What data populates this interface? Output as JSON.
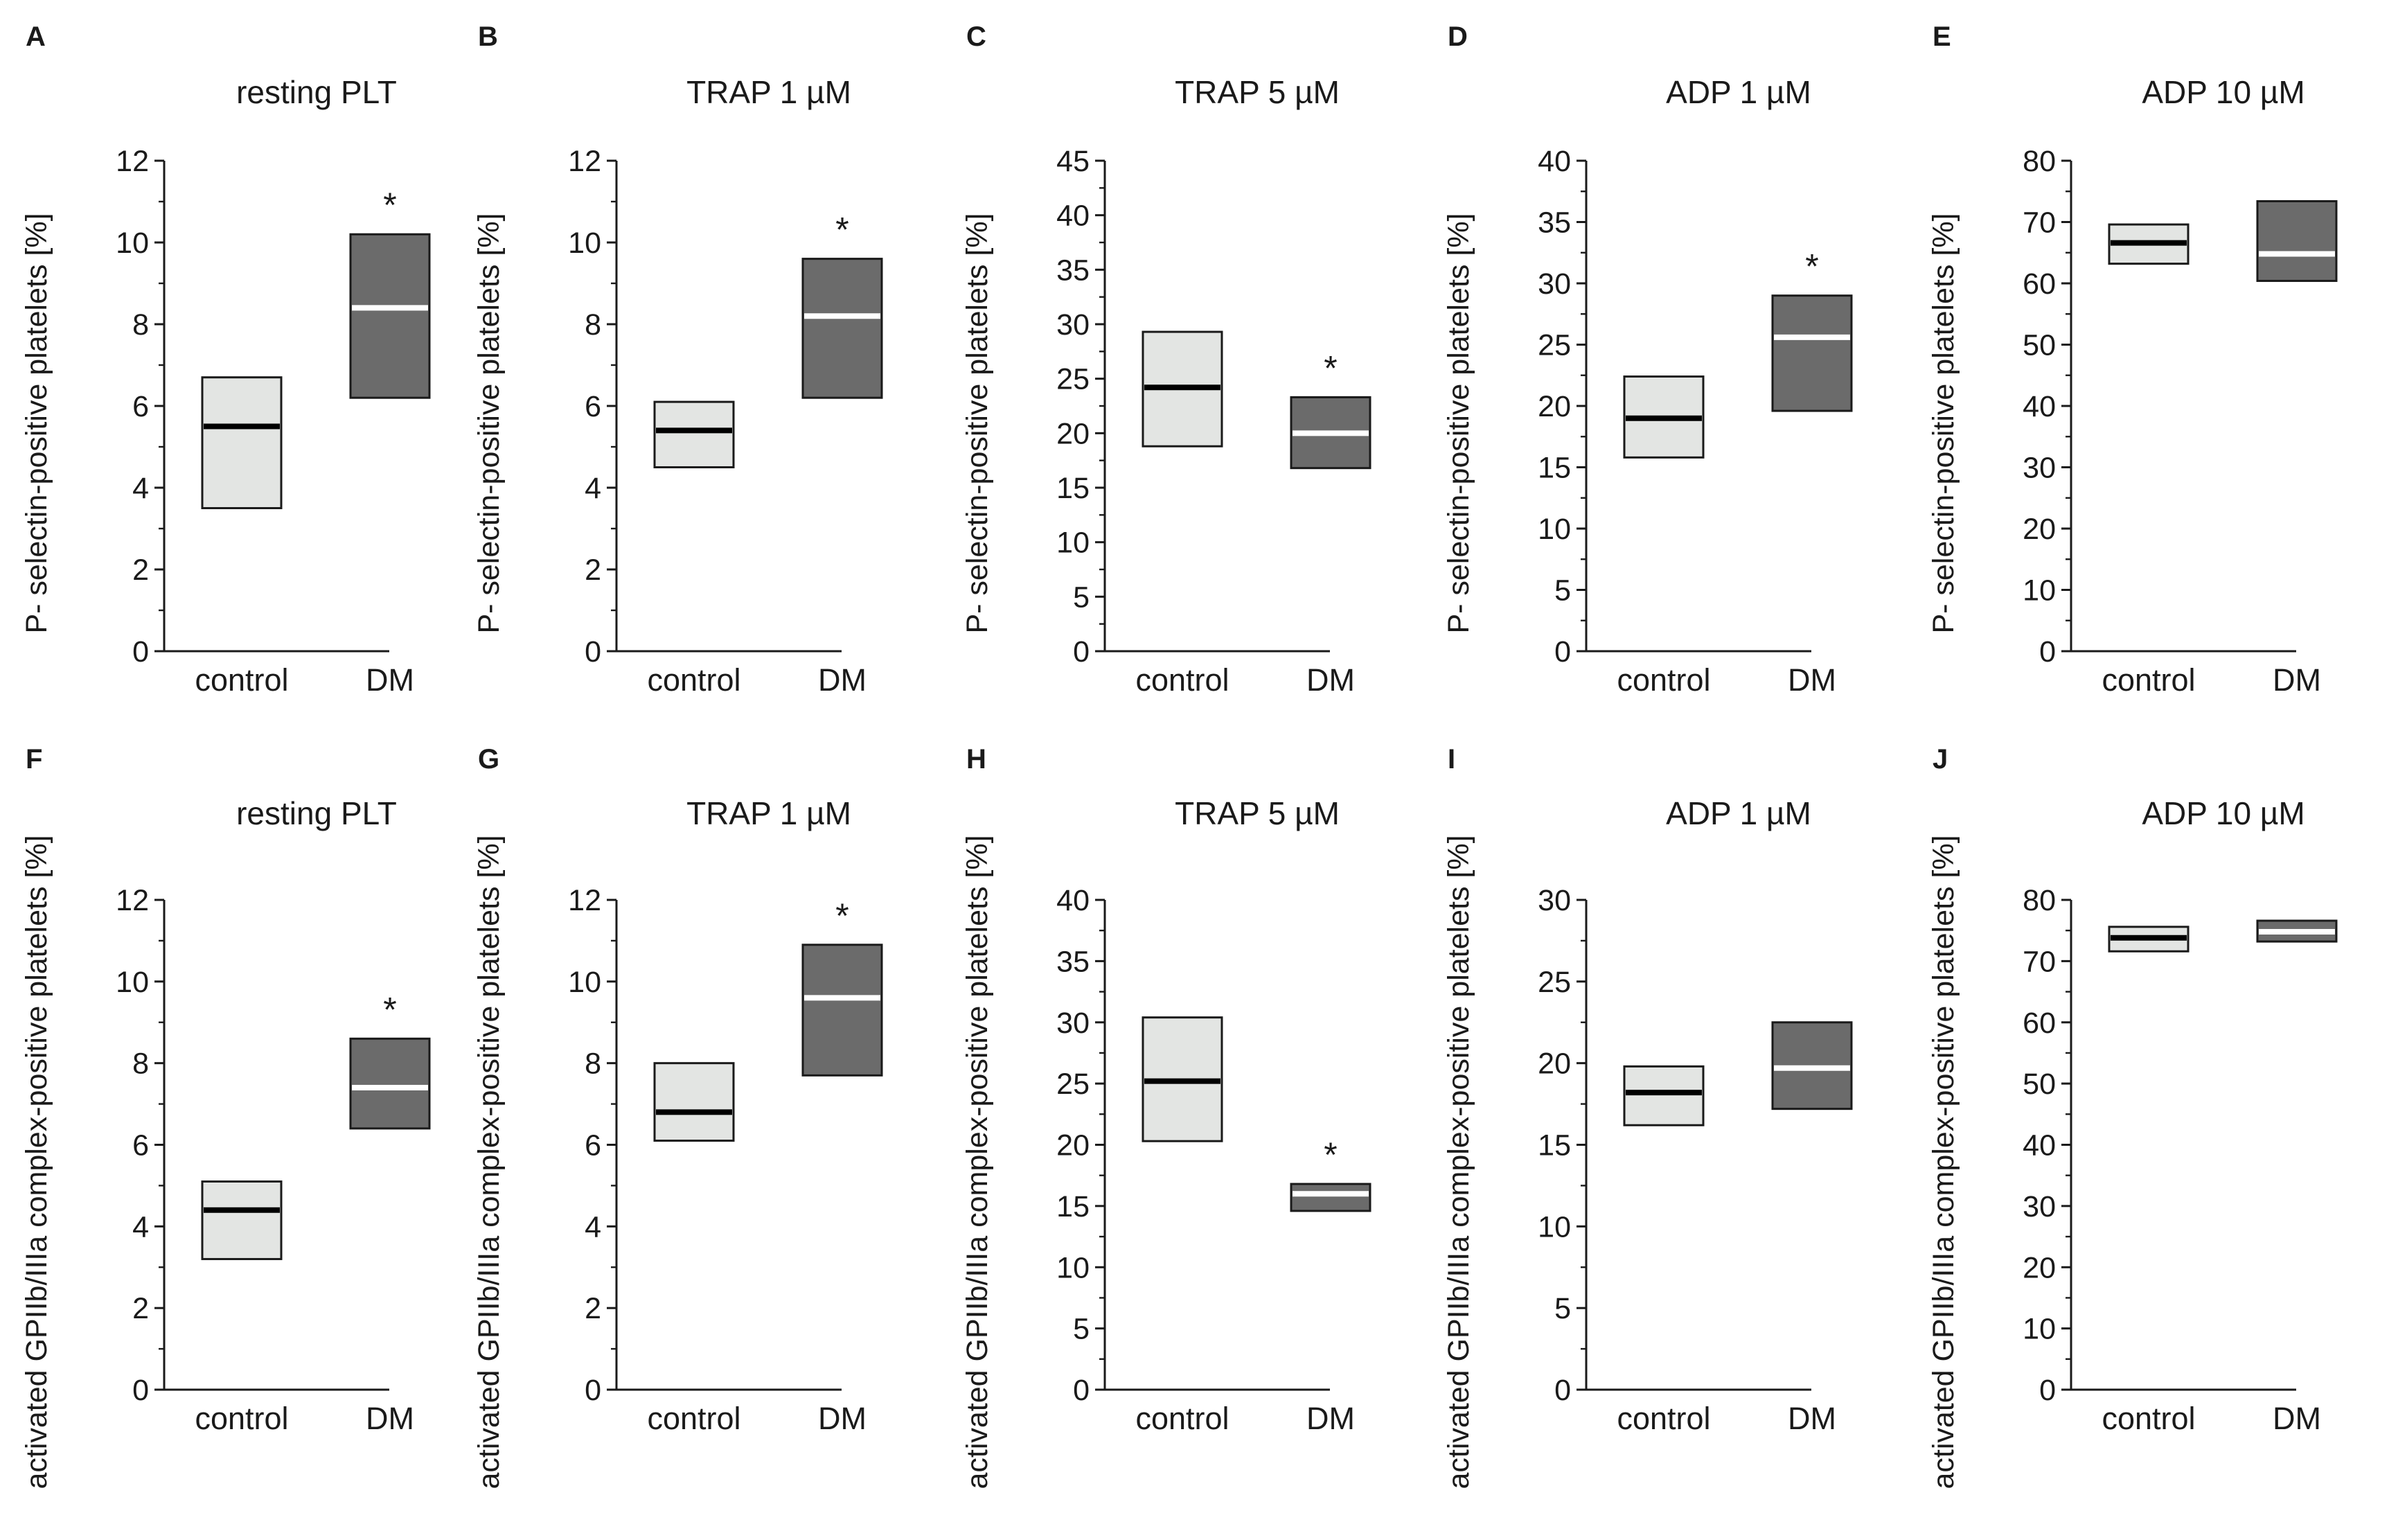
{
  "colors": {
    "control_fill": "#e3e5e3",
    "dm_fill": "#6b6b6b",
    "control_median": "#000000",
    "dm_median": "#ffffff",
    "axis": "#1a1a1a"
  },
  "chart_data": [
    {
      "panel": "A",
      "title": "resting PLT",
      "type": "box",
      "ylabel": "P- selectin-positive platelets [%]",
      "ylim": [
        0,
        12
      ],
      "yticks": [
        0,
        2,
        4,
        6,
        8,
        10,
        12
      ],
      "categories": [
        "control",
        "DM"
      ],
      "boxes": [
        {
          "low": 3.5,
          "median": 5.5,
          "high": 6.7
        },
        {
          "low": 6.2,
          "median": 8.4,
          "high": 10.2
        }
      ],
      "significance": [
        "",
        "*"
      ]
    },
    {
      "panel": "B",
      "title": "TRAP 1 µM",
      "type": "box",
      "ylabel": "P- selectin-positive platelets [%]",
      "ylim": [
        0,
        12
      ],
      "yticks": [
        0,
        2,
        4,
        6,
        8,
        10,
        12
      ],
      "categories": [
        "control",
        "DM"
      ],
      "boxes": [
        {
          "low": 4.5,
          "median": 5.4,
          "high": 6.1
        },
        {
          "low": 6.2,
          "median": 8.2,
          "high": 9.6
        }
      ],
      "significance": [
        "",
        "*"
      ]
    },
    {
      "panel": "C",
      "title": "TRAP 5 µM",
      "type": "box",
      "ylabel": "P- selectin-positive platelets [%]",
      "ylim": [
        0,
        45
      ],
      "yticks": [
        0,
        5,
        10,
        15,
        20,
        25,
        30,
        35,
        40,
        45
      ],
      "categories": [
        "control",
        "DM"
      ],
      "boxes": [
        {
          "low": 18.8,
          "median": 24.2,
          "high": 29.3
        },
        {
          "low": 16.8,
          "median": 20.0,
          "high": 23.3
        }
      ],
      "significance": [
        "",
        "*"
      ]
    },
    {
      "panel": "D",
      "title": "ADP 1 µM",
      "type": "box",
      "ylabel": "P- selectin-positive platelets [%]",
      "ylim": [
        0,
        40
      ],
      "yticks": [
        0,
        5,
        10,
        15,
        20,
        25,
        30,
        35,
        40
      ],
      "categories": [
        "control",
        "DM"
      ],
      "boxes": [
        {
          "low": 15.8,
          "median": 19.0,
          "high": 22.4
        },
        {
          "low": 19.6,
          "median": 25.6,
          "high": 29.0
        }
      ],
      "significance": [
        "",
        "*"
      ]
    },
    {
      "panel": "E",
      "title": "ADP 10 µM",
      "type": "box",
      "ylabel": "P- selectin-positive platelets [%]",
      "ylim": [
        0,
        80
      ],
      "yticks": [
        0,
        10,
        20,
        30,
        40,
        50,
        60,
        70,
        80
      ],
      "categories": [
        "control",
        "DM"
      ],
      "boxes": [
        {
          "low": 63.2,
          "median": 66.6,
          "high": 69.6
        },
        {
          "low": 60.4,
          "median": 64.8,
          "high": 73.4
        }
      ],
      "significance": [
        "",
        ""
      ]
    },
    {
      "panel": "F",
      "title": "resting PLT",
      "type": "box",
      "ylabel": "activated GPIIb/IIIa complex-positive platelets [%]",
      "ylim": [
        0,
        12
      ],
      "yticks": [
        0,
        2,
        4,
        6,
        8,
        10,
        12
      ],
      "categories": [
        "control",
        "DM"
      ],
      "boxes": [
        {
          "low": 3.2,
          "median": 4.4,
          "high": 5.1
        },
        {
          "low": 6.4,
          "median": 7.4,
          "high": 8.6
        }
      ],
      "significance": [
        "",
        "*"
      ]
    },
    {
      "panel": "G",
      "title": "TRAP 1 µM",
      "type": "box",
      "ylabel": "activated GPIIb/IIIa complex-positive platelets [%]",
      "ylim": [
        0,
        12
      ],
      "yticks": [
        0,
        2,
        4,
        6,
        8,
        10,
        12
      ],
      "categories": [
        "control",
        "DM"
      ],
      "boxes": [
        {
          "low": 6.1,
          "median": 6.8,
          "high": 8.0
        },
        {
          "low": 7.7,
          "median": 9.6,
          "high": 10.9
        }
      ],
      "significance": [
        "",
        "*"
      ]
    },
    {
      "panel": "H",
      "title": "TRAP 5 µM",
      "type": "box",
      "ylabel": "activated GPIIb/IIIa complex-positive platelets [%]",
      "ylim": [
        0,
        40
      ],
      "yticks": [
        0,
        5,
        10,
        15,
        20,
        25,
        30,
        35,
        40
      ],
      "categories": [
        "control",
        "DM"
      ],
      "boxes": [
        {
          "low": 20.3,
          "median": 25.2,
          "high": 30.4
        },
        {
          "low": 14.6,
          "median": 16.0,
          "high": 16.8
        }
      ],
      "significance": [
        "",
        "*"
      ]
    },
    {
      "panel": "I",
      "title": "ADP 1 µM",
      "type": "box",
      "ylabel": "activated GPIIb/IIIa complex-positive platelets [%]",
      "ylim": [
        0,
        30
      ],
      "yticks": [
        0,
        5,
        10,
        15,
        20,
        25,
        30
      ],
      "categories": [
        "control",
        "DM"
      ],
      "boxes": [
        {
          "low": 16.2,
          "median": 18.2,
          "high": 19.8
        },
        {
          "low": 17.2,
          "median": 19.7,
          "high": 22.5
        }
      ],
      "significance": [
        "",
        ""
      ]
    },
    {
      "panel": "J",
      "title": "ADP 10 µM",
      "type": "box",
      "ylabel": "activated GPIIb/IIIa complex-positive platelets [%]",
      "ylim": [
        0,
        80
      ],
      "yticks": [
        0,
        10,
        20,
        30,
        40,
        50,
        60,
        70,
        80
      ],
      "categories": [
        "control",
        "DM"
      ],
      "boxes": [
        {
          "low": 71.6,
          "median": 73.8,
          "high": 75.6
        },
        {
          "low": 73.2,
          "median": 74.8,
          "high": 76.6
        }
      ],
      "significance": [
        "",
        ""
      ]
    }
  ]
}
